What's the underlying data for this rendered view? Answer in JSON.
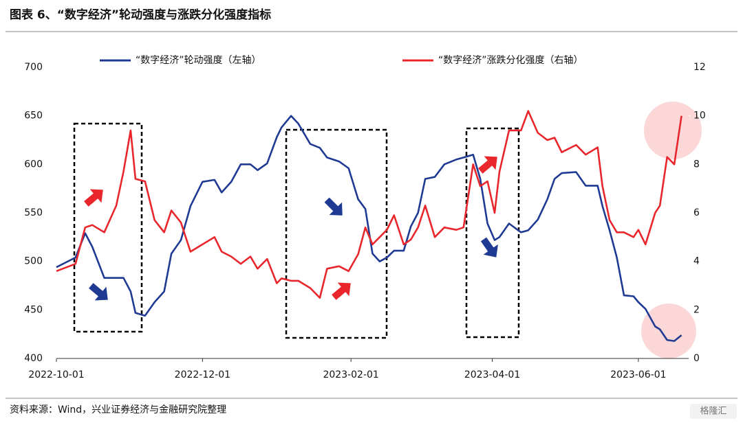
{
  "chart_data": {
    "type": "line",
    "title": "图表 6、“数字经济”轮动强度与涨跌分化强度指标",
    "source": "资料来源：Wind，兴业证券经济与金融研究院整理",
    "watermark": "格隆汇",
    "x": [
      "2022-10-01",
      "2022-10-09",
      "2022-10-13",
      "2022-10-16",
      "2022-10-21",
      "2022-10-26",
      "2022-10-29",
      "2022-11-01",
      "2022-11-03",
      "2022-11-07",
      "2022-11-11",
      "2022-11-15",
      "2022-11-18",
      "2022-11-22",
      "2022-11-26",
      "2022-12-01",
      "2022-12-06",
      "2022-12-09",
      "2022-12-13",
      "2022-12-17",
      "2022-12-21",
      "2022-12-24",
      "2022-12-28",
      "2023-01-01",
      "2023-01-03",
      "2023-01-07",
      "2023-01-10",
      "2023-01-15",
      "2023-01-19",
      "2023-01-22",
      "2023-01-27",
      "2023-01-31",
      "2023-02-04",
      "2023-02-07",
      "2023-02-10",
      "2023-02-13",
      "2023-02-16",
      "2023-02-19",
      "2023-02-23",
      "2023-02-26",
      "2023-03-01",
      "2023-03-04",
      "2023-03-08",
      "2023-03-12",
      "2023-03-17",
      "2023-03-20",
      "2023-03-24",
      "2023-03-27",
      "2023-03-30",
      "2023-04-02",
      "2023-04-04",
      "2023-04-08",
      "2023-04-13",
      "2023-04-16",
      "2023-04-20",
      "2023-04-24",
      "2023-04-27",
      "2023-04-30",
      "2023-05-06",
      "2023-05-10",
      "2023-05-15",
      "2023-05-17",
      "2023-05-20",
      "2023-05-23",
      "2023-05-26",
      "2023-05-30",
      "2023-06-01",
      "2023-06-04",
      "2023-06-08",
      "2023-06-10",
      "2023-06-13",
      "2023-06-16",
      "2023-06-19"
    ],
    "series": [
      {
        "name": "“数字经济”轮动强度（左轴）",
        "color": "#1f3a93",
        "axis": "y",
        "values": [
          494,
          504,
          529,
          515,
          483,
          483,
          483,
          469,
          447,
          444,
          458,
          469,
          508,
          522,
          557,
          582,
          584,
          571,
          582,
          600,
          600,
          594,
          601,
          628,
          638,
          650,
          642,
          621,
          617,
          607,
          603,
          596,
          564,
          554,
          508,
          500,
          504,
          511,
          511,
          536,
          550,
          585,
          587,
          600,
          605,
          607,
          610,
          585,
          539,
          522,
          525,
          539,
          530,
          532,
          543,
          564,
          585,
          591,
          592,
          578,
          578,
          557,
          532,
          504,
          465,
          464,
          458,
          451,
          433,
          430,
          419,
          418,
          424
        ]
      },
      {
        "name": "“数字经济”涨跌分化强度（右轴）",
        "color": "#e8262b",
        "axis": "y2",
        "values": [
          3.6,
          3.9,
          5.4,
          5.5,
          5.2,
          6.3,
          7.7,
          9.4,
          7.4,
          7.3,
          5.7,
          5.2,
          6.1,
          5.6,
          4.4,
          4.7,
          5.0,
          4.4,
          4.2,
          3.9,
          4.2,
          3.7,
          4.1,
          3.1,
          3.3,
          3.2,
          3.2,
          2.9,
          2.5,
          3.7,
          3.8,
          3.6,
          4.3,
          5.4,
          4.7,
          5.0,
          5.3,
          5.9,
          4.7,
          4.9,
          5.4,
          6.3,
          5.0,
          5.4,
          5.3,
          5.4,
          8.0,
          7.1,
          7.3,
          6.0,
          7.7,
          9.4,
          9.4,
          10.2,
          9.3,
          9.0,
          9.1,
          8.5,
          8.8,
          8.4,
          8.7,
          7.1,
          5.7,
          5.2,
          5.2,
          5.0,
          5.3,
          4.7,
          6.0,
          6.3,
          8.3,
          8.0,
          10.0
        ]
      }
    ],
    "xlim": [
      "2022-10-01",
      "2023-06-22"
    ],
    "xticks": [
      "2022-10-01",
      "2022-12-01",
      "2023-02-01",
      "2023-04-01",
      "2023-06-01"
    ],
    "ylim": [
      400,
      700
    ],
    "yticks": [
      400,
      450,
      500,
      550,
      600,
      650,
      700
    ],
    "y2lim": [
      0,
      12
    ],
    "y2ticks": [
      0,
      2,
      4,
      6,
      8,
      10,
      12
    ],
    "legend": "top"
  }
}
